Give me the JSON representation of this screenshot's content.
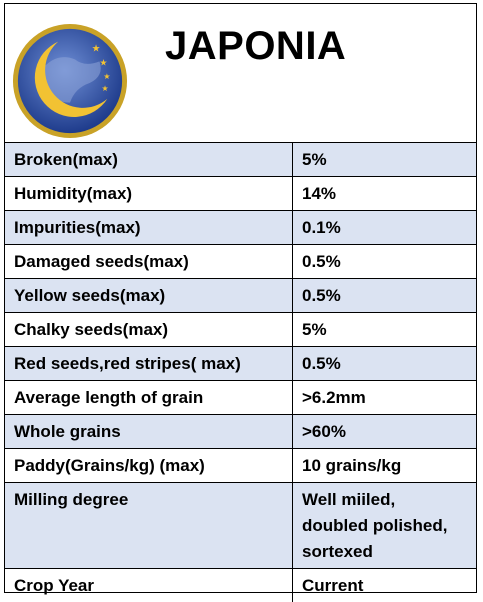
{
  "title": "JAPONIA",
  "logo": {
    "icon": "crescent-moon-globe-icon",
    "colors": {
      "ring": "#c9a227",
      "globe": "#1f3c8c",
      "moon": "#f2c233"
    }
  },
  "colors": {
    "shade": "#dbe3f2",
    "border": "#000000"
  },
  "rows": [
    {
      "label": "Broken(max)",
      "value": "5%"
    },
    {
      "label": "Humidity(max)",
      "value": "14%"
    },
    {
      "label": "Impurities(max)",
      "value": "0.1%"
    },
    {
      "label": "Damaged seeds(max)",
      "value": "0.5%"
    },
    {
      "label": "Yellow seeds(max)",
      "value": "0.5%"
    },
    {
      "label": "Chalky seeds(max)",
      "value": "5%"
    },
    {
      "label": "Red seeds,red stripes( max)",
      "value": "0.5%"
    },
    {
      "label": "Average length of grain",
      "value": ">6.2mm"
    },
    {
      "label": "Whole grains",
      "value": ">60%"
    },
    {
      "label": "Paddy(Grains/kg) (max)",
      "value": "10 grains/kg"
    },
    {
      "label": "Milling degree",
      "value": [
        "Well miiled,",
        "doubled polished,",
        "sortexed"
      ]
    },
    {
      "label": "Crop Year",
      "value": "Current"
    }
  ]
}
